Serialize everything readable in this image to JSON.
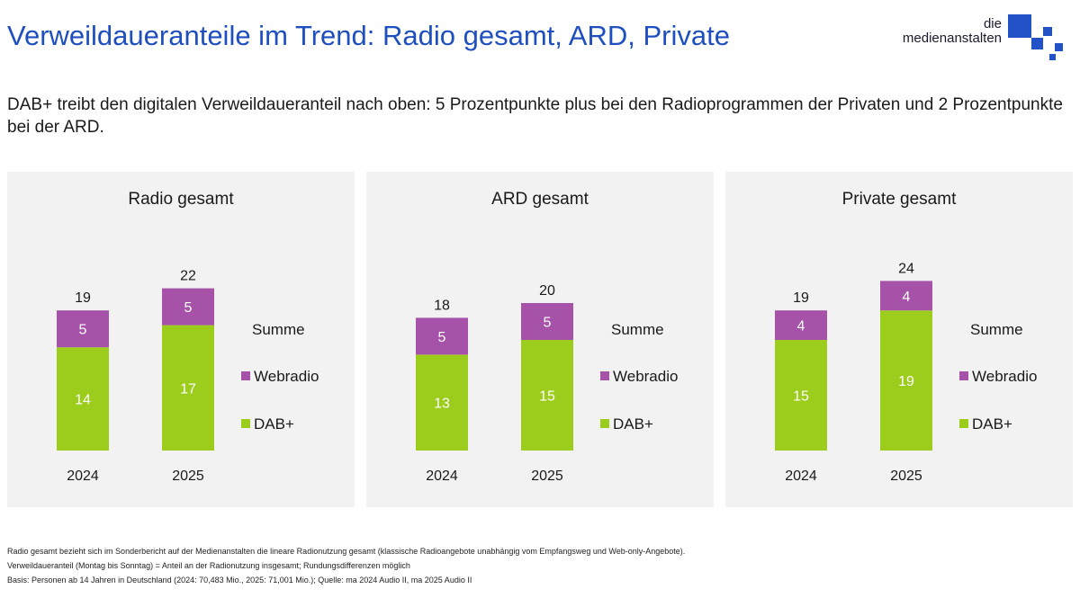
{
  "title": "Verweildaueranteile im Trend: Radio gesamt, ARD, Private",
  "logo": {
    "line1": "die",
    "line2": "medienanstalten"
  },
  "subtitle": "DAB+ treibt den digitalen Verweildaueranteil nach oben: 5 Prozentpunkte plus bei den Radioprogrammen der Privaten und 2 Prozentpunkte bei der ARD.",
  "colors": {
    "title": "#1f4fbf",
    "webradio": "#a552a8",
    "dab": "#9ccc1c",
    "panel_bg": "#f2f2f2",
    "logo": "#2251c8"
  },
  "chart_data": [
    {
      "type": "bar",
      "stacked": true,
      "title": "Radio gesamt",
      "categories": [
        "2024",
        "2025"
      ],
      "series": [
        {
          "name": "DAB+",
          "values": [
            14,
            17
          ]
        },
        {
          "name": "Webradio",
          "values": [
            5,
            5
          ]
        }
      ],
      "totals": [
        19,
        22
      ],
      "legend": [
        "Summe",
        "Webradio",
        "DAB+"
      ]
    },
    {
      "type": "bar",
      "stacked": true,
      "title": "ARD gesamt",
      "categories": [
        "2024",
        "2025"
      ],
      "series": [
        {
          "name": "DAB+",
          "values": [
            13,
            15
          ]
        },
        {
          "name": "Webradio",
          "values": [
            5,
            5
          ]
        }
      ],
      "totals": [
        18,
        20
      ],
      "legend": [
        "Summe",
        "Webradio",
        "DAB+"
      ]
    },
    {
      "type": "bar",
      "stacked": true,
      "title": "Private gesamt",
      "categories": [
        "2024",
        "2025"
      ],
      "series": [
        {
          "name": "DAB+",
          "values": [
            15,
            19
          ]
        },
        {
          "name": "Webradio",
          "values": [
            4,
            4
          ]
        }
      ],
      "totals": [
        19,
        24
      ],
      "legend": [
        "Summe",
        "Webradio",
        "DAB+"
      ]
    }
  ],
  "footnotes": [
    "Radio gesamt bezieht sich im Sonderbericht auf der Medienanstalten die lineare Radionutzung gesamt (klassische Radioangebote unabhängig vom Empfangsweg und Web-only-Angebote).",
    "Verweildaueranteil (Montag bis Sonntag) = Anteil an der Radionutzung insgesamt; Rundungsdifferenzen möglich",
    "Basis: Personen ab 14 Jahren in Deutschland (2024: 70,483 Mio., 2025: 71,001 Mio.); Quelle: ma 2024 Audio II, ma 2025 Audio II"
  ]
}
